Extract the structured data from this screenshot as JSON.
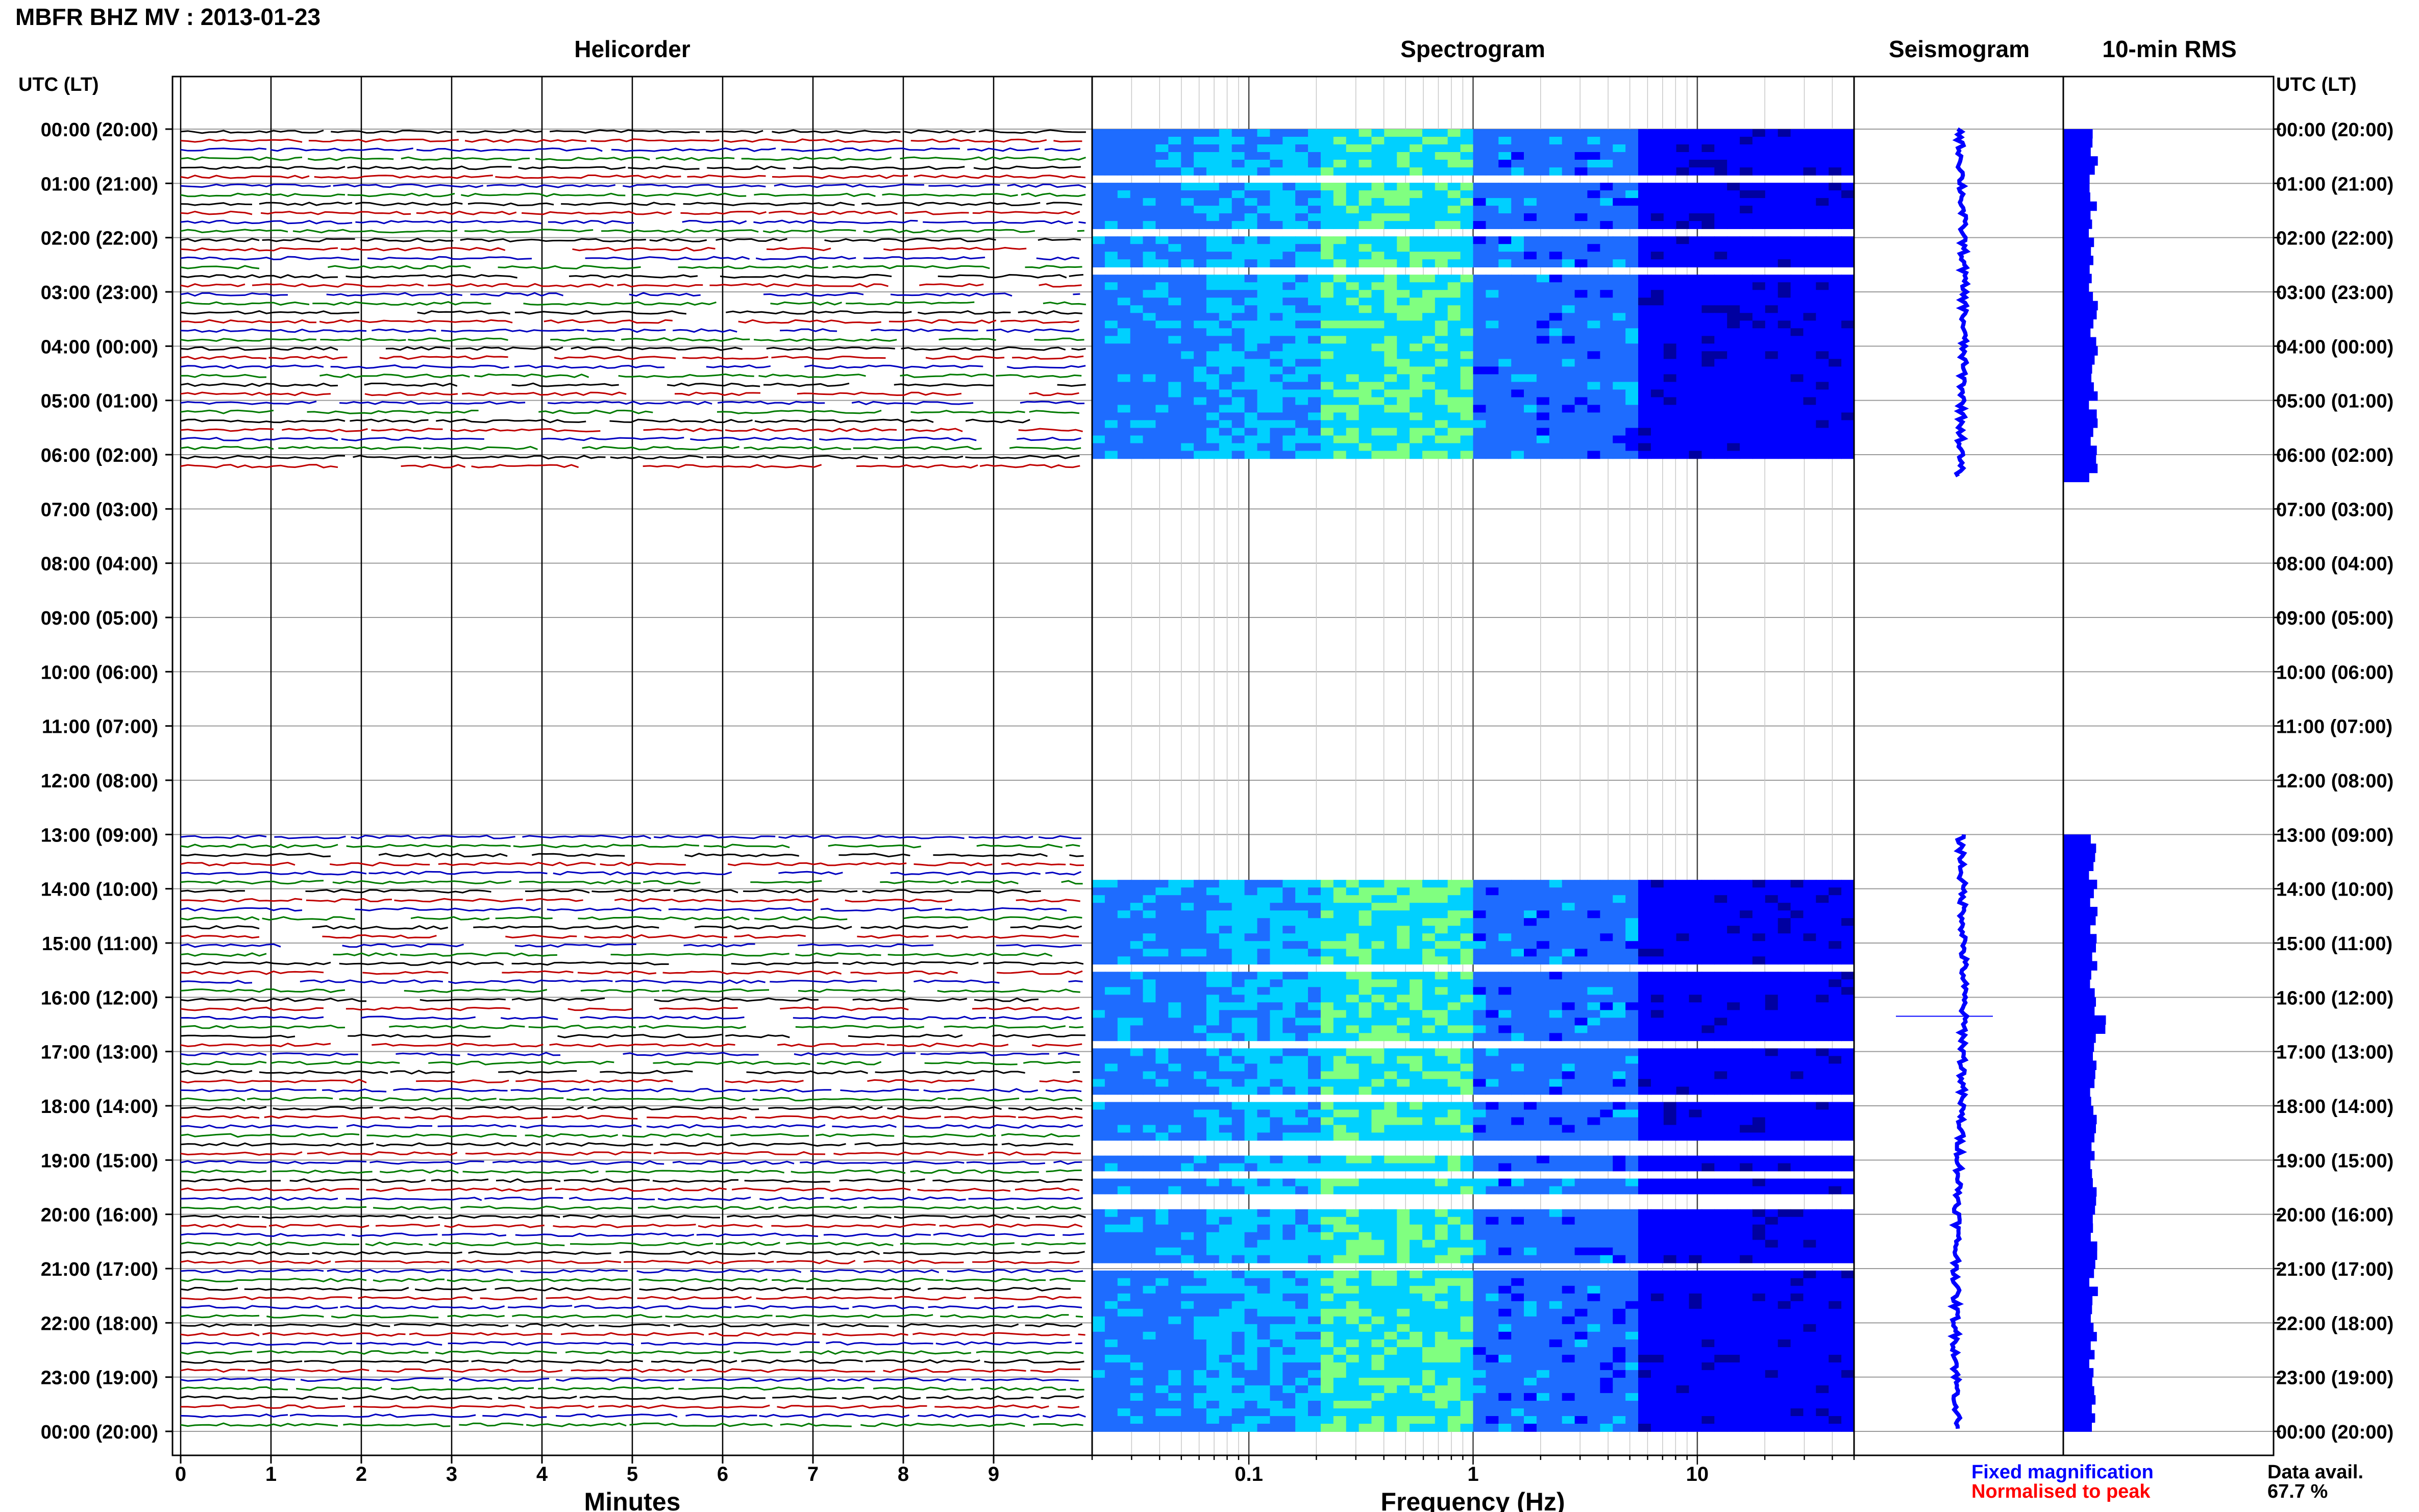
{
  "page": {
    "title": "MBFR BHZ MV : 2013-01-23"
  },
  "chart_data": [
    {
      "type": "line",
      "title": "Helicorder",
      "xlabel": "Minutes",
      "ylabel": "UTC (LT)",
      "x_ticks": [
        "0",
        "1",
        "2",
        "3",
        "4",
        "5",
        "6",
        "7",
        "8",
        "9"
      ],
      "xlim": [
        0,
        10
      ],
      "time_labels": [
        "00:00 (20:00)",
        "01:00 (21:00)",
        "02:00 (22:00)",
        "03:00 (23:00)",
        "04:00 (00:00)",
        "05:00 (01:00)",
        "06:00 (02:00)",
        "07:00 (03:00)",
        "08:00 (04:00)",
        "09:00 (05:00)",
        "10:00 (06:00)",
        "11:00 (07:00)",
        "12:00 (08:00)",
        "13:00 (09:00)",
        "14:00 (10:00)",
        "15:00 (11:00)",
        "16:00 (12:00)",
        "17:00 (13:00)",
        "18:00 (14:00)",
        "19:00 (15:00)",
        "20:00 (16:00)",
        "21:00 (17:00)",
        "22:00 (18:00)",
        "23:00 (19:00)",
        "00:00 (20:00)"
      ],
      "trace_colors": [
        "#000000",
        "#c00000",
        "#0000c0",
        "#007a00"
      ],
      "data_segments_utc_hours": [
        [
          0,
          6.2
        ],
        [
          13,
          24
        ]
      ],
      "grid": true
    },
    {
      "type": "heatmap",
      "title": "Spectrogram",
      "xlabel": "Frequency (Hz)",
      "xscale": "log",
      "xlim": [
        0.02,
        50
      ],
      "x_ticks": [
        "0.1",
        "1",
        "10"
      ],
      "ylim_utc_hours": [
        0,
        24
      ],
      "colormap": [
        "#0000a0",
        "#0000ff",
        "#1e6cff",
        "#00d0ff",
        "#80ff80"
      ],
      "data_segments_utc_hours": [
        [
          0,
          6.0
        ],
        [
          13.9,
          24
        ]
      ],
      "grid": true
    },
    {
      "type": "line",
      "title": "Seismogram",
      "color": "#0000ff",
      "data_segments_utc_hours": [
        [
          0,
          6.4
        ],
        [
          13,
          24
        ]
      ]
    },
    {
      "type": "bar",
      "title": "10-min RMS",
      "color": "#0000ff",
      "orientation": "horizontal",
      "data_segments_utc_hours": [
        [
          0,
          6.5
        ],
        [
          12.9,
          24
        ]
      ]
    }
  ],
  "legend": {
    "fixed": "Fixed magnification",
    "fixed_color": "#0000ff",
    "normalised": "Normalised to peak",
    "normalised_color": "#ff0000"
  },
  "data_avail": {
    "label": "Data avail.",
    "value": "67.7 %"
  }
}
